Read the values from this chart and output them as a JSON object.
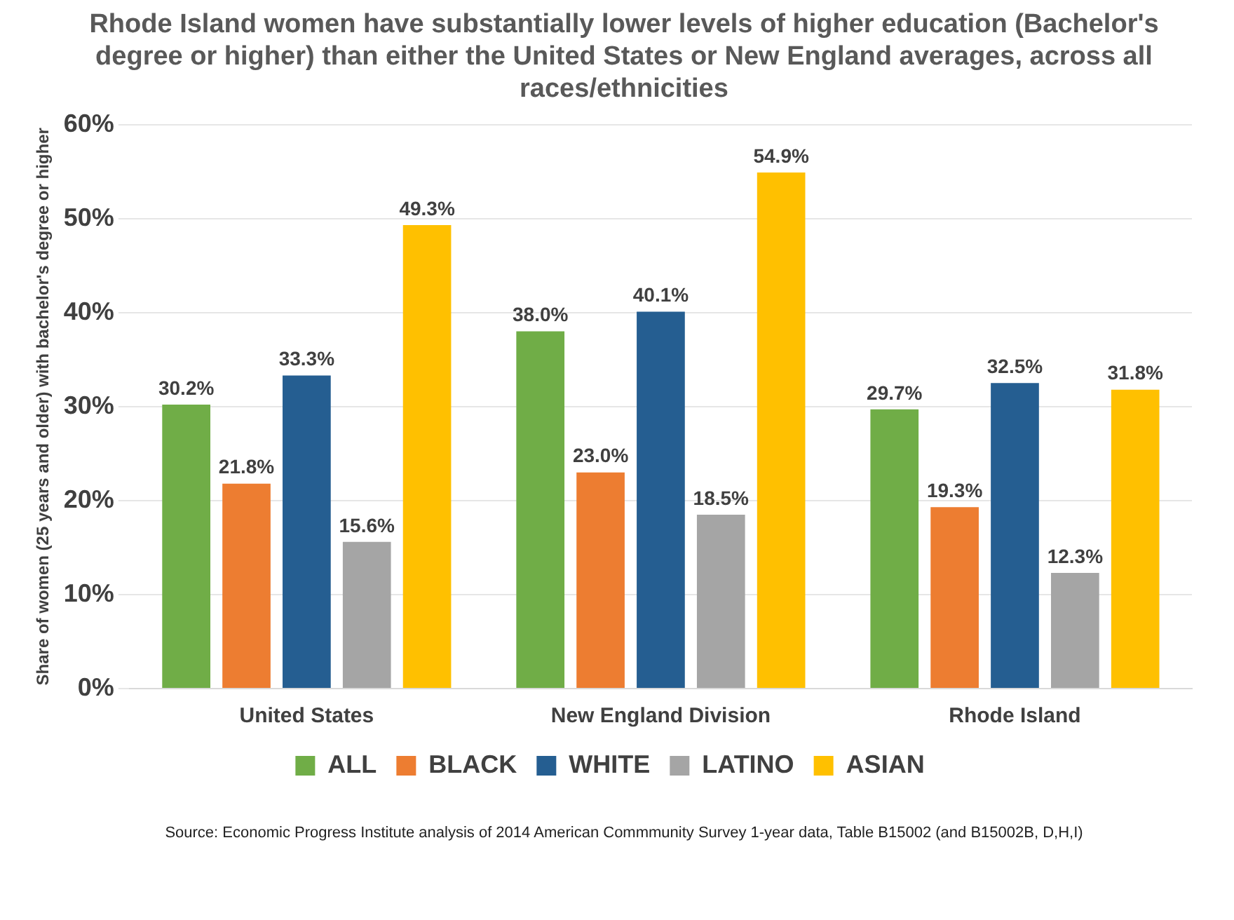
{
  "chart_data": {
    "type": "bar",
    "title": "Rhode Island women have substantially lower levels of higher education (Bachelor's  degree or higher) than either the United States or New England averages, across all races/ethnicities",
    "ylabel": "Share of women (25 years and older) with bachelor's degree or higher",
    "categories": [
      "United States",
      "New England Division",
      "Rhode Island"
    ],
    "series": [
      {
        "name": "ALL",
        "color": "#70ad47",
        "values": [
          30.2,
          38.0,
          29.7
        ],
        "value_labels": [
          "30.2%",
          "38.0%",
          "29.7%"
        ]
      },
      {
        "name": "BLACK",
        "color": "#ed7d31",
        "values": [
          21.8,
          23.0,
          19.3
        ],
        "value_labels": [
          "21.8%",
          "23.0%",
          "19.3%"
        ]
      },
      {
        "name": "WHITE",
        "color": "#255e91",
        "values": [
          33.3,
          40.1,
          32.5
        ],
        "value_labels": [
          "33.3%",
          "40.1%",
          "32.5%"
        ]
      },
      {
        "name": "LATINO",
        "color": "#a5a5a5",
        "values": [
          15.6,
          18.5,
          12.3
        ],
        "value_labels": [
          "15.6%",
          "18.5%",
          "12.3%"
        ]
      },
      {
        "name": "ASIAN",
        "color": "#ffc000",
        "values": [
          49.3,
          54.9,
          31.8
        ],
        "value_labels": [
          "49.3%",
          "54.9%",
          "31.8%"
        ]
      }
    ],
    "ylim": [
      0,
      60
    ],
    "yticks": [
      {
        "value": 0,
        "label": "0%"
      },
      {
        "value": 10,
        "label": "10%"
      },
      {
        "value": 20,
        "label": "20%"
      },
      {
        "value": 30,
        "label": "30%"
      },
      {
        "value": 40,
        "label": "40%"
      },
      {
        "value": 50,
        "label": "50%"
      },
      {
        "value": 60,
        "label": "60%"
      }
    ],
    "grid": "y",
    "legend": "bottom",
    "annotations": [
      "Source: Economic Progress Institute analysis of 2014 American Commmunity Survey 1-year data, Table B15002 (and B15002B,  D,H,I)"
    ]
  }
}
